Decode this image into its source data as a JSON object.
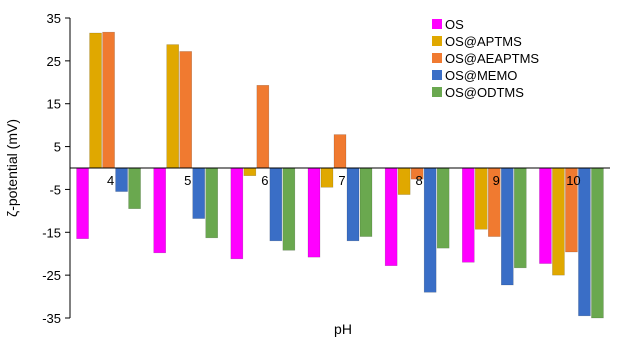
{
  "chart_data": {
    "type": "bar",
    "title": "",
    "xlabel": "pH",
    "ylabel": "ζ-potential (mV)",
    "ylim": [
      -35,
      35
    ],
    "yticks": [
      35,
      25,
      15,
      5,
      -5,
      -15,
      -25,
      -35
    ],
    "y_tick_labels": [
      "35",
      "25",
      "15",
      "5",
      "-5",
      "-15",
      "-25",
      "-35"
    ],
    "categories": [
      "4",
      "5",
      "6",
      "7",
      "8",
      "9",
      "10"
    ],
    "grid": false,
    "legend_position": "top-right",
    "series": [
      {
        "name": "OS",
        "color": "#ff00ff",
        "values": [
          -16.5,
          -19.8,
          -21.2,
          -20.8,
          -22.8,
          -22.0,
          -22.3
        ]
      },
      {
        "name": "OS@APTMS",
        "color": "#e0a800",
        "values": [
          31.5,
          28.8,
          -1.8,
          -4.5,
          -6.2,
          -14.3,
          -25.0
        ]
      },
      {
        "name": "OS@AEAPTMS",
        "color": "#f07a30",
        "values": [
          31.7,
          27.2,
          19.3,
          7.8,
          -2.6,
          -16.0,
          -19.6
        ]
      },
      {
        "name": "OS@MEMO",
        "color": "#3a6ec6",
        "values": [
          -5.5,
          -11.8,
          -17.0,
          -17.0,
          -29.0,
          -27.3,
          -34.5
        ]
      },
      {
        "name": "OS@ODTMS",
        "color": "#6aa84f",
        "values": [
          -9.5,
          -16.3,
          -19.2,
          -16.0,
          -18.7,
          -23.3,
          -35.0
        ]
      }
    ]
  }
}
